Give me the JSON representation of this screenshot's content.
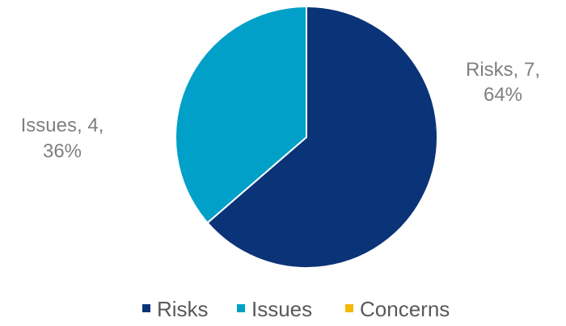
{
  "chart_data": {
    "type": "pie",
    "title": "",
    "categories": [
      "Risks",
      "Issues",
      "Concerns"
    ],
    "values": [
      7,
      4,
      0
    ],
    "percentages": [
      "64%",
      "36%",
      "0%"
    ],
    "colors": [
      "#0b3378",
      "#00a0c8",
      "#f5b800"
    ],
    "data_labels": {
      "risks": {
        "line1": "Risks, 7,",
        "line2": "64%"
      },
      "issues": {
        "line1": "Issues, 4,",
        "line2": "36%"
      }
    },
    "legend": {
      "position": "bottom",
      "items": [
        {
          "label": "Risks",
          "color": "#0b3378"
        },
        {
          "label": "Issues",
          "color": "#00a0c8"
        },
        {
          "label": "Concerns",
          "color": "#f5b800"
        }
      ]
    }
  }
}
